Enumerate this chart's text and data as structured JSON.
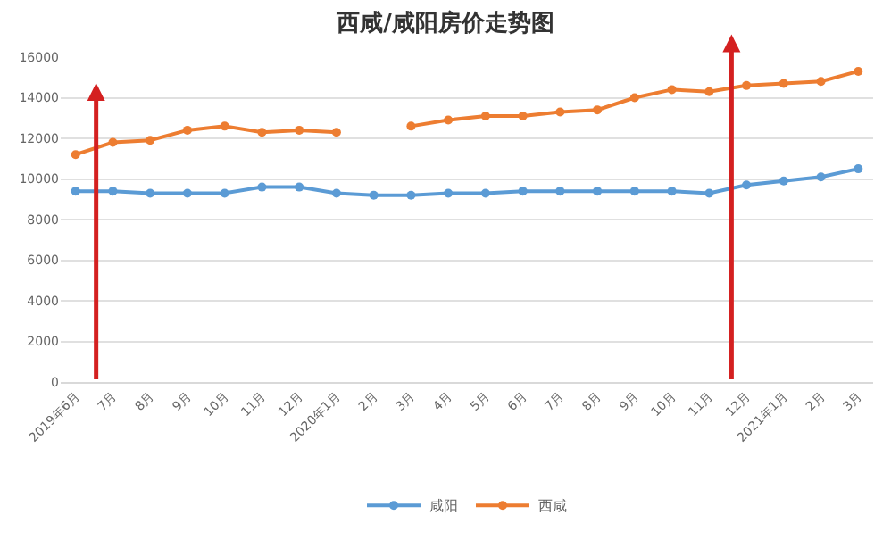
{
  "chart_data": {
    "type": "line",
    "title": "西咸/咸阳房价走势图",
    "categories": [
      "2019年6月",
      "7月",
      "8月",
      "9月",
      "10月",
      "11月",
      "12月",
      "2020年1月",
      "2月",
      "3月",
      "4月",
      "5月",
      "6月",
      "7月",
      "8月",
      "9月",
      "10月",
      "11月",
      "12月",
      "2021年1月",
      "2月",
      "3月"
    ],
    "series": [
      {
        "name": "咸阳",
        "color": "#5b9bd5",
        "values": [
          9400,
          9400,
          9300,
          9300,
          9300,
          9600,
          9600,
          9300,
          9200,
          9200,
          9300,
          9300,
          9400,
          9400,
          9400,
          9400,
          9400,
          9300,
          9700,
          9900,
          10100,
          10500
        ]
      },
      {
        "name": "西咸",
        "color": "#ed7d31",
        "values": [
          11200,
          11800,
          11900,
          12400,
          12600,
          12300,
          12400,
          12300,
          null,
          12600,
          12900,
          13100,
          13100,
          13300,
          13400,
          14000,
          14400,
          14300,
          14600,
          14700,
          14800,
          15300
        ]
      }
    ],
    "ylim": [
      0,
      16000
    ],
    "yticks": [
      0,
      2000,
      4000,
      6000,
      8000,
      10000,
      12000,
      14000,
      16000
    ],
    "grid": "y",
    "legend": "bottom",
    "marker": "circle",
    "line_style": "solid"
  }
}
